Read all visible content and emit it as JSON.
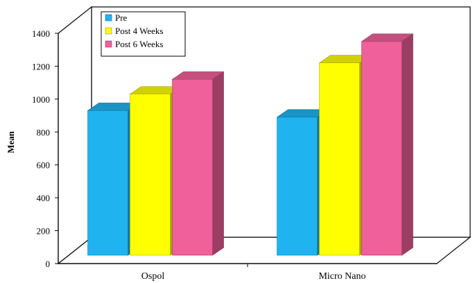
{
  "chart_data": {
    "type": "bar",
    "title": "",
    "xlabel": "",
    "ylabel": "Mean",
    "ylim": [
      0,
      1400
    ],
    "yticks": [
      0,
      200,
      400,
      600,
      800,
      1000,
      1200,
      1400
    ],
    "categories": [
      "Ospol",
      "Micro Nano"
    ],
    "series": [
      {
        "name": "Pre",
        "values": [
          930,
          890
        ],
        "color": "#1fb4f0"
      },
      {
        "name": "Post 4 Weeks",
        "values": [
          1030,
          1220
        ],
        "color": "#ffff00"
      },
      {
        "name": "Post 6 Weeks",
        "values": [
          1120,
          1350
        ],
        "color": "#f0609a"
      }
    ],
    "legend_position": "top-left",
    "grid": false,
    "style": "3d"
  }
}
